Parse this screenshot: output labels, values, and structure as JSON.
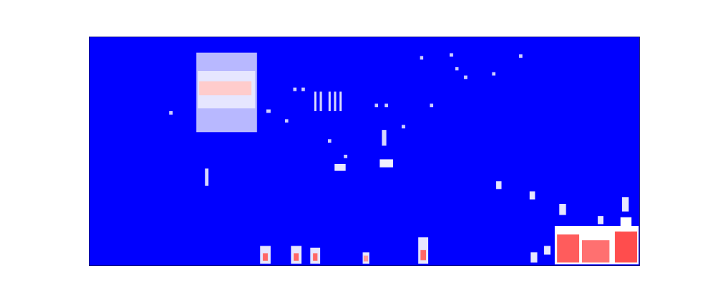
{
  "chart_data": {
    "type": "heatmap",
    "tick_labels": false,
    "xlim": [
      0,
      100
    ],
    "ylim": [
      0,
      40
    ],
    "colorscale": [
      "#0000ff",
      "#ffffff",
      "#ff0000"
    ],
    "zlim": [
      0,
      1
    ],
    "cells": [
      {
        "x0": 19.5,
        "x1": 30.5,
        "y0": 23.3,
        "y1": 37.2,
        "value": 0.36
      },
      {
        "x0": 19.8,
        "x1": 30.2,
        "y0": 27.5,
        "y1": 34,
        "value": 0.45
      },
      {
        "x0": 20,
        "x1": 29.5,
        "y0": 29.8,
        "y1": 32.2,
        "value": 0.6
      },
      {
        "x0": 14.6,
        "x1": 15.2,
        "y0": 26.4,
        "y1": 27,
        "value": 0.4
      },
      {
        "x0": 21.1,
        "x1": 21.7,
        "y0": 14,
        "y1": 17,
        "value": 0.42
      },
      {
        "x0": 32.2,
        "x1": 33,
        "y0": 26.7,
        "y1": 27.3,
        "value": 0.4
      },
      {
        "x0": 35.6,
        "x1": 36.2,
        "y0": 25,
        "y1": 25.6,
        "value": 0.4
      },
      {
        "x0": 37.1,
        "x1": 37.7,
        "y0": 30.5,
        "y1": 31.1,
        "value": 0.4
      },
      {
        "x0": 38.6,
        "x1": 39.2,
        "y0": 30.5,
        "y1": 31.1,
        "value": 0.4
      },
      {
        "x0": 40.9,
        "x1": 41.3,
        "y0": 27,
        "y1": 30.4,
        "value": 0.42
      },
      {
        "x0": 41.9,
        "x1": 42.3,
        "y0": 27,
        "y1": 30.4,
        "value": 0.42
      },
      {
        "x0": 43.5,
        "x1": 43.9,
        "y0": 27,
        "y1": 30.4,
        "value": 0.42
      },
      {
        "x0": 44.5,
        "x1": 44.9,
        "y0": 27,
        "y1": 30.4,
        "value": 0.42
      },
      {
        "x0": 45.5,
        "x1": 45.9,
        "y0": 27,
        "y1": 30.4,
        "value": 0.42
      },
      {
        "x0": 43.4,
        "x1": 44,
        "y0": 21.5,
        "y1": 22.1,
        "value": 0.4
      },
      {
        "x0": 44.6,
        "x1": 46.6,
        "y0": 16.6,
        "y1": 17.8,
        "value": 0.45
      },
      {
        "x0": 46.3,
        "x1": 46.9,
        "y0": 18.8,
        "y1": 19.4,
        "value": 0.4
      },
      {
        "x0": 51.9,
        "x1": 52.5,
        "y0": 27.7,
        "y1": 28.3,
        "value": 0.4
      },
      {
        "x0": 53.7,
        "x1": 54.3,
        "y0": 27.7,
        "y1": 28.3,
        "value": 0.4
      },
      {
        "x0": 53.2,
        "x1": 54,
        "y0": 21,
        "y1": 23.7,
        "value": 0.42
      },
      {
        "x0": 52.8,
        "x1": 55.2,
        "y0": 17.2,
        "y1": 18.6,
        "value": 0.47
      },
      {
        "x0": 56.8,
        "x1": 57.4,
        "y0": 24,
        "y1": 24.6,
        "value": 0.4
      },
      {
        "x0": 60.1,
        "x1": 60.7,
        "y0": 36,
        "y1": 36.6,
        "value": 0.4
      },
      {
        "x0": 61.9,
        "x1": 62.5,
        "y0": 27.7,
        "y1": 28.3,
        "value": 0.4
      },
      {
        "x0": 65.5,
        "x1": 66.1,
        "y0": 36.5,
        "y1": 37.1,
        "value": 0.4
      },
      {
        "x0": 66.5,
        "x1": 67.1,
        "y0": 34.1,
        "y1": 34.7,
        "value": 0.4
      },
      {
        "x0": 68.1,
        "x1": 68.7,
        "y0": 32.6,
        "y1": 33.2,
        "value": 0.4
      },
      {
        "x0": 73.2,
        "x1": 73.8,
        "y0": 33.2,
        "y1": 33.8,
        "value": 0.4
      },
      {
        "x0": 78.1,
        "x1": 78.7,
        "y0": 36.3,
        "y1": 36.9,
        "value": 0.4
      },
      {
        "x0": 73.9,
        "x1": 74.9,
        "y0": 13.4,
        "y1": 14.8,
        "value": 0.45
      },
      {
        "x0": 80,
        "x1": 81,
        "y0": 11.6,
        "y1": 13,
        "value": 0.45
      },
      {
        "x0": 85.4,
        "x1": 86.6,
        "y0": 8.9,
        "y1": 10.8,
        "value": 0.45
      },
      {
        "x0": 92.4,
        "x1": 93.4,
        "y0": 7.3,
        "y1": 8.7,
        "value": 0.45
      },
      {
        "x0": 96.8,
        "x1": 98,
        "y0": 9.5,
        "y1": 12,
        "value": 0.45
      },
      {
        "x0": 31.1,
        "x1": 33,
        "y0": 0.4,
        "y1": 3.5,
        "value": 0.45
      },
      {
        "x0": 31.6,
        "x1": 32.5,
        "y0": 0.9,
        "y1": 2.2,
        "value": 0.8
      },
      {
        "x0": 36.7,
        "x1": 38.6,
        "y0": 0.4,
        "y1": 3.5,
        "value": 0.45
      },
      {
        "x0": 37.2,
        "x1": 38.1,
        "y0": 0.9,
        "y1": 2.2,
        "value": 0.8
      },
      {
        "x0": 40.2,
        "x1": 42,
        "y0": 0.4,
        "y1": 3.2,
        "value": 0.45
      },
      {
        "x0": 40.7,
        "x1": 41.5,
        "y0": 0.9,
        "y1": 2.2,
        "value": 0.8
      },
      {
        "x0": 49.7,
        "x1": 50.9,
        "y0": 0.4,
        "y1": 2.4,
        "value": 0.45
      },
      {
        "x0": 49.9,
        "x1": 50.7,
        "y0": 0.8,
        "y1": 1.8,
        "value": 0.7
      },
      {
        "x0": 59.8,
        "x1": 61.6,
        "y0": 0.4,
        "y1": 5,
        "value": 0.45
      },
      {
        "x0": 60.2,
        "x1": 61.2,
        "y0": 1,
        "y1": 2.8,
        "value": 0.8
      },
      {
        "x0": 80.2,
        "x1": 81.4,
        "y0": 0.6,
        "y1": 2.4,
        "value": 0.45
      },
      {
        "x0": 82.6,
        "x1": 83.8,
        "y0": 2,
        "y1": 3.5,
        "value": 0.45
      },
      {
        "x0": 84.6,
        "x1": 99.8,
        "y0": 0.3,
        "y1": 7,
        "value": 0.5
      },
      {
        "x0": 85,
        "x1": 89,
        "y0": 0.6,
        "y1": 5.5,
        "value": 0.82
      },
      {
        "x0": 89.5,
        "x1": 94.5,
        "y0": 0.6,
        "y1": 4.5,
        "value": 0.78
      },
      {
        "x0": 95.5,
        "x1": 99.5,
        "y0": 0.6,
        "y1": 6,
        "value": 0.85
      },
      {
        "x0": 96.5,
        "x1": 98.5,
        "y0": 6,
        "y1": 8.5,
        "value": 0.5
      }
    ]
  }
}
